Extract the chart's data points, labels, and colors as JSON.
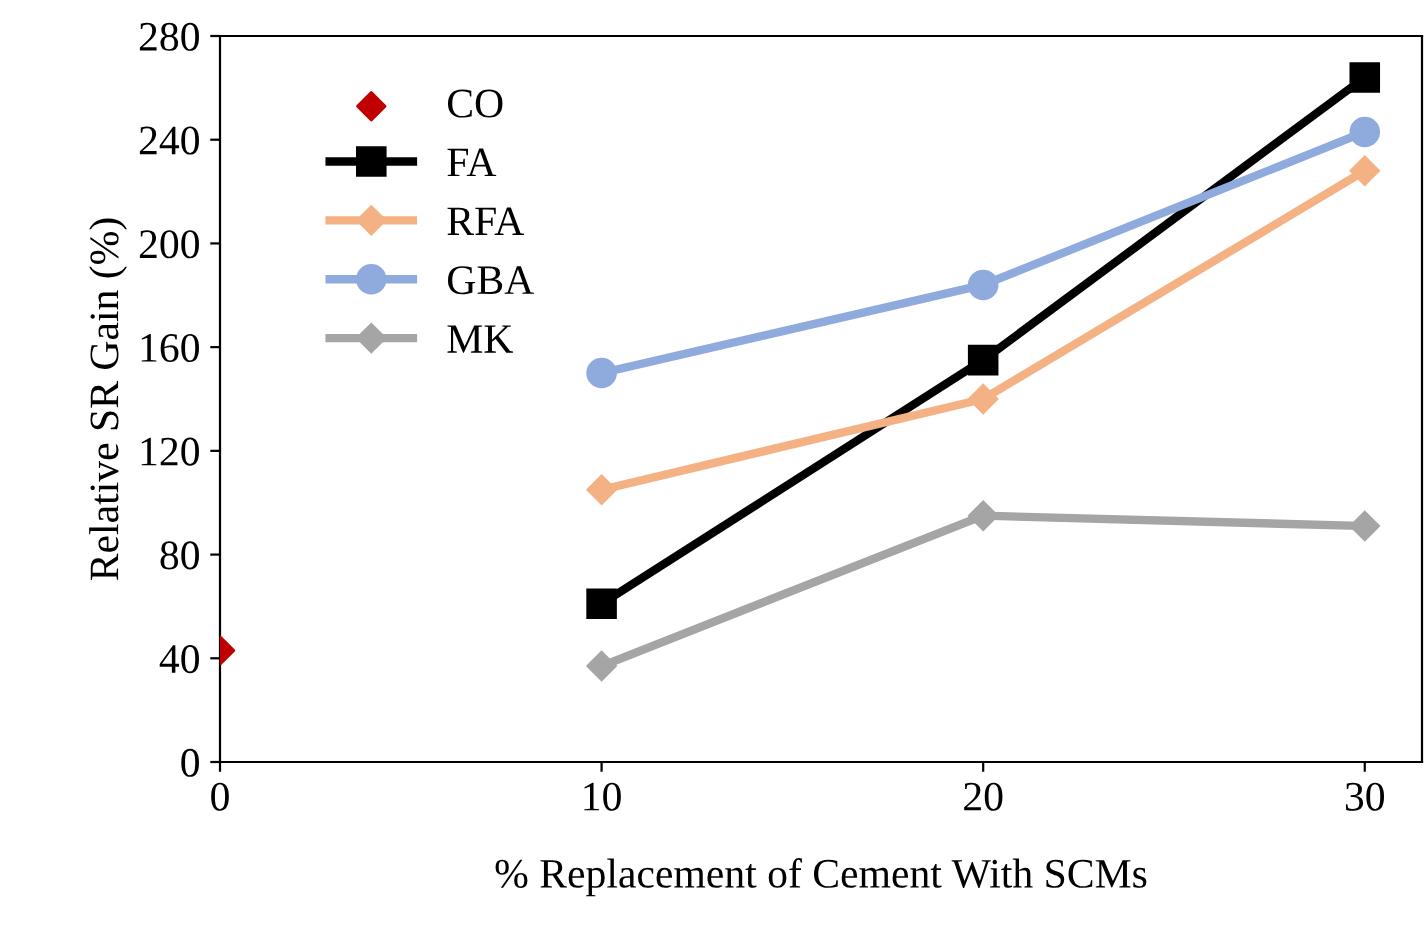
{
  "chart_data": {
    "type": "line",
    "xlabel": "% Replacement of Cement With SCMs",
    "ylabel": "Relative SR Gain (%)",
    "xlim": [
      0,
      31.5
    ],
    "xticks": [
      0,
      10,
      20,
      30
    ],
    "ylim": [
      0,
      280
    ],
    "yticks": [
      0,
      40,
      80,
      120,
      160,
      200,
      240,
      280
    ],
    "grid": false,
    "legend": "top left",
    "series": [
      {
        "name": "CO",
        "type": "scatter",
        "color": "#c00000",
        "marker": "diamond",
        "x": [
          0
        ],
        "values": [
          43
        ]
      },
      {
        "name": "FA",
        "color": "#000000",
        "marker": "square",
        "x": [
          10,
          20,
          30
        ],
        "values": [
          61,
          155,
          264
        ]
      },
      {
        "name": "RFA",
        "color": "#f4b183",
        "marker": "diamond",
        "x": [
          10,
          20,
          30
        ],
        "values": [
          105,
          140,
          228
        ]
      },
      {
        "name": "GBA",
        "color": "#8faadc",
        "marker": "circle",
        "x": [
          10,
          20,
          30
        ],
        "values": [
          150,
          184,
          243
        ]
      },
      {
        "name": "MK",
        "color": "#a5a5a5",
        "marker": "diamond",
        "x": [
          10,
          20,
          30
        ],
        "values": [
          37,
          95,
          91
        ]
      }
    ]
  }
}
